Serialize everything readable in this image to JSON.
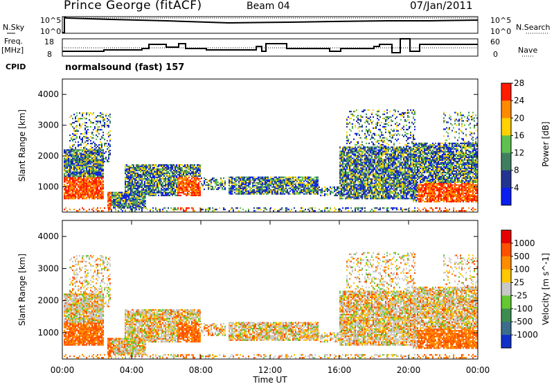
{
  "header": {
    "station": "Prince George (fitACF)",
    "beam": "Beam 04",
    "date": "07/Jan/2011"
  },
  "mode": {
    "cpid_label": "CPID",
    "program": "normalsound (fast) 157"
  },
  "panels": {
    "nsky": {
      "left_label": "N.Sky",
      "right_label": "N.Search",
      "left_ticks": [
        "10^5",
        "10^0"
      ],
      "right_ticks": [
        "10^5",
        "10^0"
      ]
    },
    "freq": {
      "left_label_1": "Freq.",
      "left_label_2": "[MHz]",
      "right_label": "Nave",
      "left_ticks": [
        "18",
        "8"
      ],
      "right_ticks": [
        "60",
        "0"
      ]
    }
  },
  "chart_data": [
    {
      "type": "heatmap",
      "title": "",
      "ylabel": "Slant Range [km]",
      "ylim": [
        180,
        4500
      ],
      "y_ticks": [
        1000,
        2000,
        3000,
        4000
      ],
      "colorbar_label": "Power [dB]",
      "colorbar_ticks": [
        4,
        8,
        12,
        16,
        20,
        24,
        28
      ],
      "colorbar_colors": [
        "#0a1ef0",
        "#22348f",
        "#3f7f60",
        "#5fc050",
        "#ffd200",
        "#ff8a00",
        "#ff1c00"
      ]
    },
    {
      "type": "heatmap",
      "title": "",
      "ylabel": "Slant Range [km]",
      "ylim": [
        180,
        4500
      ],
      "y_ticks": [
        1000,
        2000,
        3000,
        4000
      ],
      "xlabel": "Time UT",
      "x_ticks": [
        "00:00",
        "04:00",
        "08:00",
        "12:00",
        "16:00",
        "20:00",
        "00:00"
      ],
      "colorbar_label": "Velocity [m s^-1]",
      "colorbar_ticks": [
        "1000",
        "500",
        "100",
        "25",
        "-25",
        "-100",
        "-500",
        "-1000"
      ],
      "colorbar_colors": [
        "#1030c8",
        "#3c6e8c",
        "#3c8c50",
        "#64c832",
        "#c8c8c8",
        "#ffc800",
        "#ff8c00",
        "#ff5000",
        "#e60000"
      ]
    }
  ]
}
